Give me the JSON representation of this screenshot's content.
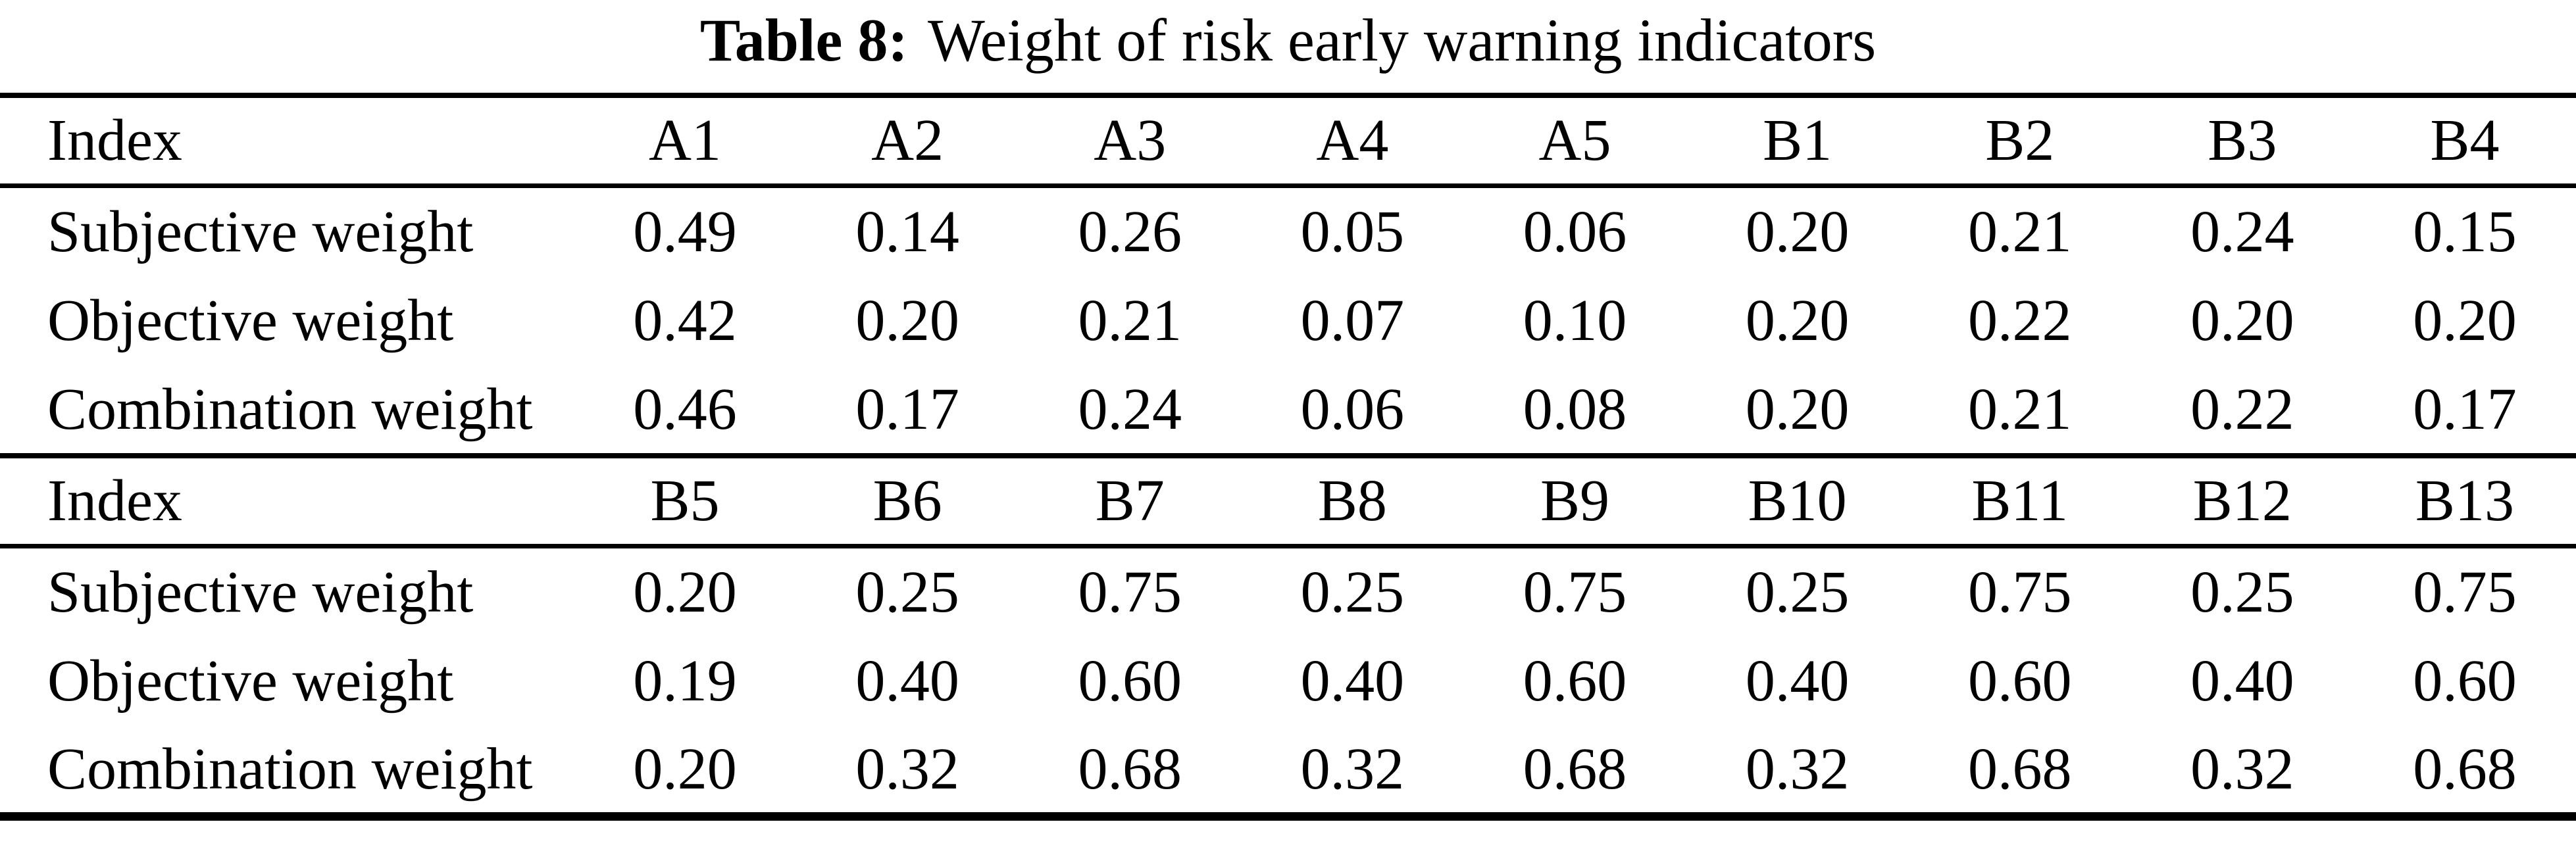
{
  "title": {
    "label": "Table 8:",
    "text": "Weight of risk early warning indicators"
  },
  "colors": {
    "text": "#000000",
    "background": "#ffffff",
    "rule": "#000000"
  },
  "table": {
    "blocks": [
      {
        "header": [
          "Index",
          "A1",
          "A2",
          "A3",
          "A4",
          "A5",
          "B1",
          "B2",
          "B3",
          "B4"
        ],
        "rows": [
          [
            "Subjective weight",
            "0.49",
            "0.14",
            "0.26",
            "0.05",
            "0.06",
            "0.20",
            "0.21",
            "0.24",
            "0.15"
          ],
          [
            "Objective weight",
            "0.42",
            "0.20",
            "0.21",
            "0.07",
            "0.10",
            "0.20",
            "0.22",
            "0.20",
            "0.20"
          ],
          [
            "Combination weight",
            "0.46",
            "0.17",
            "0.24",
            "0.06",
            "0.08",
            "0.20",
            "0.21",
            "0.22",
            "0.17"
          ]
        ]
      },
      {
        "header": [
          "Index",
          "B5",
          "B6",
          "B7",
          "B8",
          "B9",
          "B10",
          "B11",
          "B12",
          "B13"
        ],
        "rows": [
          [
            "Subjective weight",
            "0.20",
            "0.25",
            "0.75",
            "0.25",
            "0.75",
            "0.25",
            "0.75",
            "0.25",
            "0.75"
          ],
          [
            "Objective weight",
            "0.19",
            "0.40",
            "0.60",
            "0.40",
            "0.60",
            "0.40",
            "0.60",
            "0.40",
            "0.60"
          ],
          [
            "Combination weight",
            "0.20",
            "0.32",
            "0.68",
            "0.32",
            "0.68",
            "0.32",
            "0.68",
            "0.32",
            "0.68"
          ]
        ]
      }
    ]
  }
}
